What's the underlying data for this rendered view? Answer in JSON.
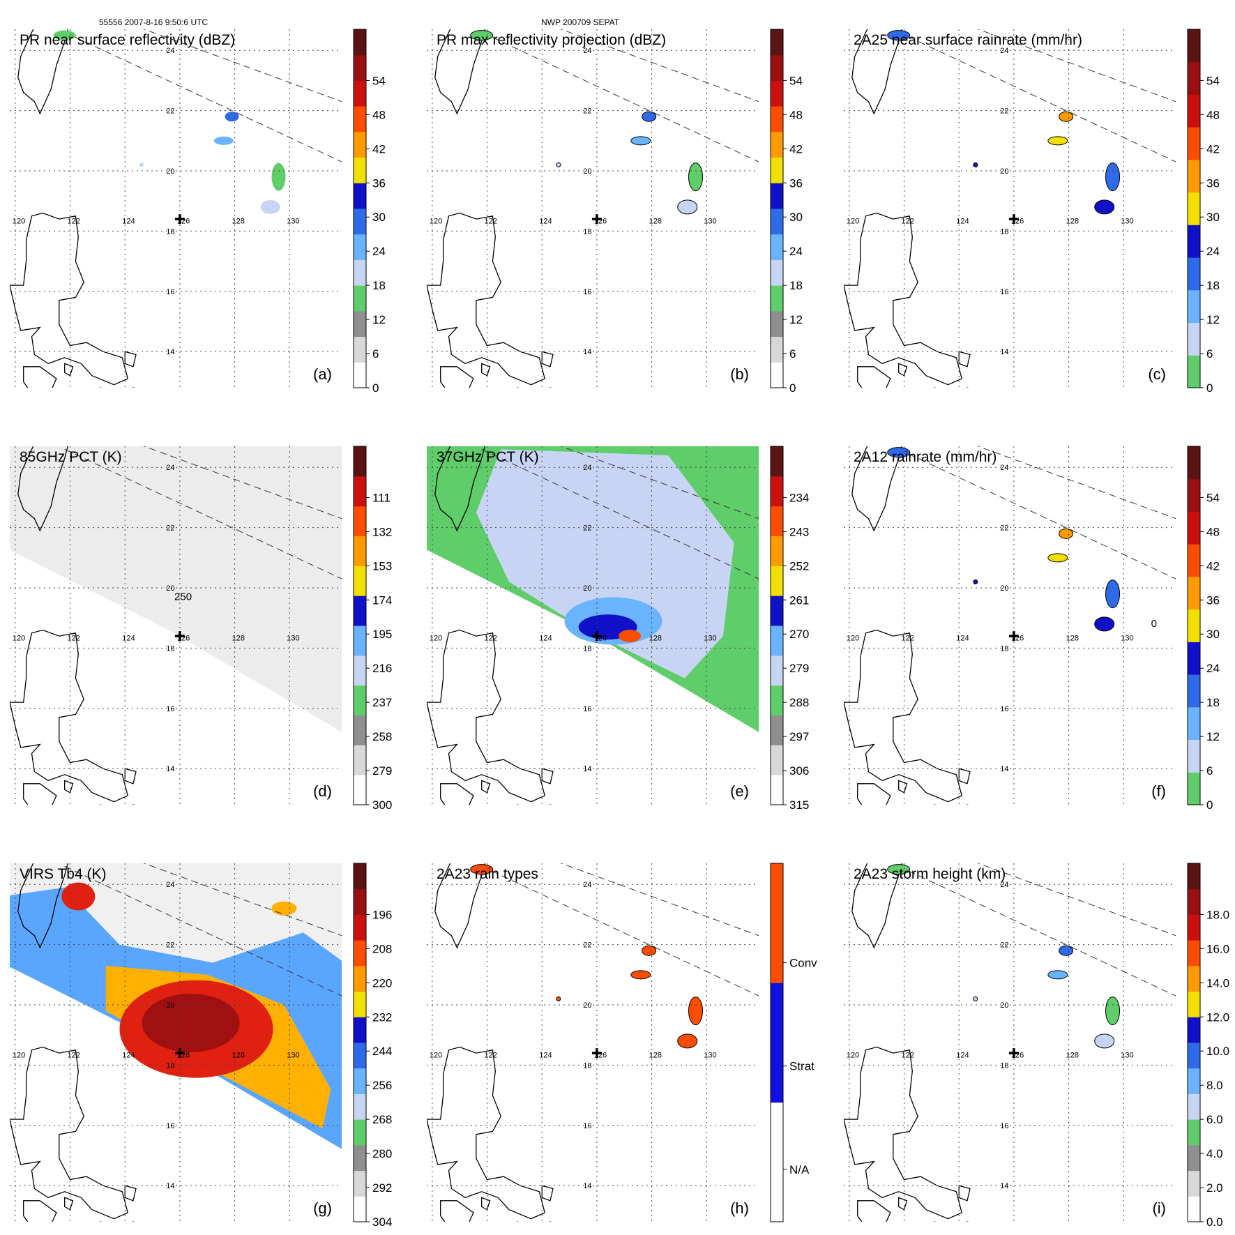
{
  "header": {
    "left": "55556 2007-8-16 9:50:6 UTC",
    "center": "NWP 200709 SEPAT"
  },
  "map": {
    "lon_labels": [
      "120",
      "122",
      "124",
      "126",
      "128",
      "130"
    ],
    "lat_labels": [
      "14",
      "16",
      "18",
      "20",
      "22",
      "24"
    ],
    "storm_center": {
      "lon": 126,
      "lat": 18.4
    }
  },
  "colors": {
    "dbz": [
      "#ffffff",
      "#d8d8d8",
      "#8f8f8f",
      "#5ecd6a",
      "#c8d4f4",
      "#6ab4ff",
      "#2f6ae8",
      "#1010c8",
      "#f2e000",
      "#ff9a00",
      "#ff4d00",
      "#cc1010",
      "#9a1010",
      "#5a1414"
    ],
    "rain": [
      "#5ecd6a",
      "#c8d4f4",
      "#6ab4ff",
      "#2f6ae8",
      "#1010c8",
      "#f2e000",
      "#ff9a00",
      "#ff4d00",
      "#cc1010",
      "#9a1010",
      "#5a1414"
    ],
    "pct": [
      "#ffffff",
      "#d8d8d8",
      "#8f8f8f",
      "#5ecd6a",
      "#c8d4f4",
      "#6ab4ff",
      "#1010c8",
      "#f2e000",
      "#ff9a00",
      "#ff4d00",
      "#cc1010",
      "#5a1414"
    ],
    "raintype": [
      "#ffffff",
      "#1010e0",
      "#ff4d00"
    ],
    "storm": [
      "#ffffff",
      "#d8d8d8",
      "#8f8f8f",
      "#5ecd6a",
      "#c8d4f4",
      "#6ab4ff",
      "#2f6ae8",
      "#1010c8",
      "#f2e000",
      "#ff9a00",
      "#ff4d00",
      "#cc1010",
      "#9a1010",
      "#5a1414"
    ]
  },
  "panels": [
    {
      "id": "a",
      "title": "PR near surface reflectivity (dBZ)",
      "letter": "(a)",
      "palette": "dbz",
      "ticks": [
        "0",
        "6",
        "12",
        "18",
        "24",
        "30",
        "36",
        "42",
        "48",
        "54"
      ],
      "swath": "none"
    },
    {
      "id": "b",
      "title": "PR max reflectivity projection (dBZ)",
      "letter": "(b)",
      "palette": "dbz",
      "ticks": [
        "0",
        "6",
        "12",
        "18",
        "24",
        "30",
        "36",
        "42",
        "48",
        "54"
      ],
      "swath": "none"
    },
    {
      "id": "c",
      "title": "2A25 near surface rainrate (mm/hr)",
      "letter": "(c)",
      "palette": "rain",
      "ticks": [
        "0",
        "6",
        "12",
        "18",
        "24",
        "30",
        "36",
        "42",
        "48",
        "54"
      ],
      "swath": "none"
    },
    {
      "id": "d",
      "title": "85GHz PCT (K)",
      "letter": "(d)",
      "palette": "pct",
      "ticks": [
        "300",
        "279",
        "258",
        "237",
        "216",
        "195",
        "174",
        "153",
        "132",
        "111"
      ],
      "swath": "gray",
      "contour_label": "250"
    },
    {
      "id": "e",
      "title": "37GHz PCT (K)",
      "letter": "(e)",
      "palette": "pct",
      "ticks": [
        "315",
        "306",
        "297",
        "288",
        "279",
        "270",
        "261",
        "252",
        "243",
        "234"
      ],
      "swath": "green"
    },
    {
      "id": "f",
      "title": "2A12 rainrate (mm/hr)",
      "letter": "(f)",
      "palette": "rain",
      "ticks": [
        "0",
        "6",
        "12",
        "18",
        "24",
        "30",
        "36",
        "42",
        "48",
        "54"
      ],
      "swath": "none",
      "contour_label": "0"
    },
    {
      "id": "g",
      "title": "VIRS Tb4 (K)",
      "letter": "(g)",
      "palette": "dbz",
      "ticks": [
        "304",
        "292",
        "280",
        "268",
        "256",
        "244",
        "232",
        "220",
        "208",
        "196"
      ],
      "swath": "ir"
    },
    {
      "id": "h",
      "title": "2A23 rain types",
      "letter": "(h)",
      "palette": "raintype",
      "ticks": [
        "N/A",
        "Strat",
        "Conv"
      ],
      "swath": "none"
    },
    {
      "id": "i",
      "title": "2A23 storm height (km)",
      "letter": "(i)",
      "palette": "storm",
      "ticks": [
        "0.0",
        "2.0",
        "4.0",
        "6.0",
        "8.0",
        "10.0",
        "12.0",
        "14.0",
        "16.0",
        "18.0"
      ],
      "swath": "none"
    }
  ]
}
